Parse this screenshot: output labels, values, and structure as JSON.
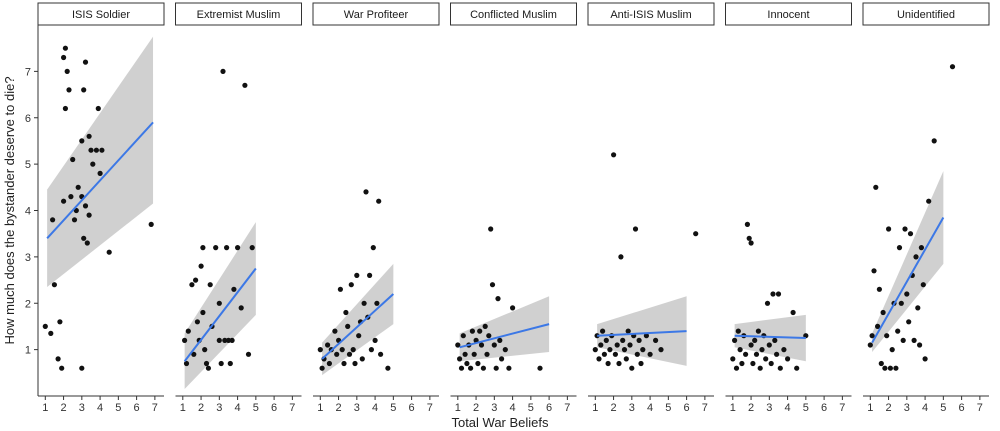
{
  "chart_data": {
    "type": "scatter",
    "xlabel": "Total War Beliefs",
    "ylabel": "How much does the bystander deserve to die?",
    "xlim": [
      0.6,
      7.5
    ],
    "ylim": [
      0,
      8
    ],
    "x_ticks": [
      "1",
      "2",
      "3",
      "4",
      "5",
      "6",
      "7"
    ],
    "y_ticks": [
      "1",
      "2",
      "3",
      "4",
      "5",
      "6",
      "7"
    ],
    "grid": false,
    "colors": {
      "point": "#111111",
      "fit_line": "#3c78e6",
      "ribbon": "#c8c8c8",
      "strip_fill": "#ffffff"
    },
    "panels": [
      {
        "label": "ISIS Soldier",
        "fit": {
          "x": [
            1.1,
            6.9
          ],
          "y": [
            3.4,
            5.9
          ],
          "ci_lower": [
            2.35,
            4.15
          ],
          "ci_upper": [
            4.45,
            7.75
          ]
        },
        "points": [
          [
            1.0,
            1.5
          ],
          [
            1.3,
            1.35
          ],
          [
            1.4,
            3.8
          ],
          [
            1.5,
            2.4
          ],
          [
            1.7,
            0.8
          ],
          [
            1.8,
            1.6
          ],
          [
            1.9,
            0.6
          ],
          [
            2.0,
            7.3
          ],
          [
            2.1,
            7.5
          ],
          [
            2.2,
            7.0
          ],
          [
            2.1,
            6.2
          ],
          [
            2.3,
            6.6
          ],
          [
            2.0,
            4.2
          ],
          [
            2.4,
            4.3
          ],
          [
            2.5,
            5.1
          ],
          [
            2.6,
            3.8
          ],
          [
            2.7,
            4.0
          ],
          [
            2.8,
            4.5
          ],
          [
            3.0,
            5.5
          ],
          [
            3.1,
            6.6
          ],
          [
            3.2,
            7.2
          ],
          [
            3.0,
            4.3
          ],
          [
            3.1,
            3.4
          ],
          [
            3.2,
            4.1
          ],
          [
            3.3,
            3.3
          ],
          [
            3.0,
            0.6
          ],
          [
            3.4,
            3.9
          ],
          [
            3.5,
            5.3
          ],
          [
            3.4,
            5.6
          ],
          [
            3.6,
            5.0
          ],
          [
            3.8,
            5.3
          ],
          [
            3.9,
            6.2
          ],
          [
            4.0,
            4.8
          ],
          [
            4.1,
            5.3
          ],
          [
            4.5,
            3.1
          ],
          [
            6.8,
            3.7
          ]
        ]
      },
      {
        "label": "Extremist Muslim",
        "fit": {
          "x": [
            1.1,
            5.0
          ],
          "y": [
            0.75,
            2.75
          ],
          "ci_lower": [
            0.15,
            1.75
          ],
          "ci_upper": [
            1.35,
            3.75
          ]
        },
        "points": [
          [
            1.1,
            1.2
          ],
          [
            1.2,
            0.7
          ],
          [
            1.3,
            1.4
          ],
          [
            1.5,
            2.4
          ],
          [
            1.6,
            0.9
          ],
          [
            1.7,
            2.5
          ],
          [
            1.8,
            1.6
          ],
          [
            1.9,
            1.2
          ],
          [
            2.0,
            2.8
          ],
          [
            2.1,
            3.2
          ],
          [
            2.2,
            1.0
          ],
          [
            2.1,
            1.8
          ],
          [
            2.3,
            0.7
          ],
          [
            2.4,
            0.6
          ],
          [
            2.5,
            2.4
          ],
          [
            2.6,
            1.5
          ],
          [
            2.8,
            3.2
          ],
          [
            3.0,
            2.0
          ],
          [
            3.0,
            1.2
          ],
          [
            3.1,
            0.7
          ],
          [
            3.2,
            7.0
          ],
          [
            3.4,
            3.2
          ],
          [
            3.3,
            1.2
          ],
          [
            3.5,
            1.2
          ],
          [
            3.6,
            0.7
          ],
          [
            3.7,
            1.2
          ],
          [
            3.8,
            2.3
          ],
          [
            4.0,
            3.2
          ],
          [
            4.2,
            1.9
          ],
          [
            4.4,
            6.7
          ],
          [
            4.6,
            0.9
          ],
          [
            4.8,
            3.2
          ]
        ]
      },
      {
        "label": "War Profiteer",
        "fit": {
          "x": [
            1.1,
            5.0
          ],
          "y": [
            0.8,
            2.2
          ],
          "ci_lower": [
            0.45,
            1.55
          ],
          "ci_upper": [
            1.15,
            2.85
          ]
        },
        "points": [
          [
            1.0,
            1.0
          ],
          [
            1.1,
            0.6
          ],
          [
            1.2,
            0.8
          ],
          [
            1.4,
            1.1
          ],
          [
            1.5,
            0.7
          ],
          [
            1.6,
            1.0
          ],
          [
            1.8,
            1.4
          ],
          [
            1.9,
            0.9
          ],
          [
            2.0,
            1.2
          ],
          [
            2.1,
            2.3
          ],
          [
            2.2,
            1.0
          ],
          [
            2.3,
            0.7
          ],
          [
            2.4,
            1.8
          ],
          [
            2.5,
            1.5
          ],
          [
            2.6,
            0.9
          ],
          [
            2.7,
            2.4
          ],
          [
            2.8,
            1.0
          ],
          [
            2.9,
            0.7
          ],
          [
            3.0,
            2.6
          ],
          [
            3.1,
            1.3
          ],
          [
            3.2,
            1.6
          ],
          [
            3.3,
            0.8
          ],
          [
            3.4,
            2.0
          ],
          [
            3.5,
            4.4
          ],
          [
            3.6,
            1.7
          ],
          [
            3.7,
            2.6
          ],
          [
            3.8,
            1.0
          ],
          [
            3.9,
            3.2
          ],
          [
            4.0,
            1.2
          ],
          [
            4.1,
            2.0
          ],
          [
            4.2,
            4.2
          ],
          [
            4.3,
            0.9
          ],
          [
            4.7,
            0.6
          ]
        ]
      },
      {
        "label": "Conflicted Muslim",
        "fit": {
          "x": [
            1.1,
            6.0
          ],
          "y": [
            1.05,
            1.55
          ],
          "ci_lower": [
            0.75,
            0.95
          ],
          "ci_upper": [
            1.35,
            2.15
          ]
        },
        "points": [
          [
            1.0,
            1.1
          ],
          [
            1.1,
            0.8
          ],
          [
            1.2,
            0.6
          ],
          [
            1.3,
            1.3
          ],
          [
            1.4,
            0.9
          ],
          [
            1.5,
            0.7
          ],
          [
            1.6,
            1.1
          ],
          [
            1.7,
            0.6
          ],
          [
            1.8,
            1.4
          ],
          [
            1.9,
            0.9
          ],
          [
            2.0,
            1.2
          ],
          [
            2.1,
            0.7
          ],
          [
            2.2,
            1.4
          ],
          [
            2.3,
            1.1
          ],
          [
            2.4,
            0.6
          ],
          [
            2.5,
            1.5
          ],
          [
            2.6,
            0.9
          ],
          [
            2.7,
            1.3
          ],
          [
            2.8,
            3.6
          ],
          [
            2.9,
            2.4
          ],
          [
            3.0,
            1.1
          ],
          [
            3.1,
            0.6
          ],
          [
            3.2,
            2.1
          ],
          [
            3.3,
            1.2
          ],
          [
            3.4,
            0.8
          ],
          [
            3.6,
            1.0
          ],
          [
            3.8,
            0.6
          ],
          [
            4.0,
            1.9
          ],
          [
            5.5,
            0.6
          ]
        ]
      },
      {
        "label": "Anti-ISIS Muslim",
        "fit": {
          "x": [
            1.1,
            6.0
          ],
          "y": [
            1.3,
            1.4
          ],
          "ci_lower": [
            1.05,
            0.65
          ],
          "ci_upper": [
            1.55,
            2.15
          ]
        },
        "points": [
          [
            1.0,
            1.0
          ],
          [
            1.1,
            1.3
          ],
          [
            1.2,
            0.8
          ],
          [
            1.3,
            1.1
          ],
          [
            1.4,
            1.4
          ],
          [
            1.5,
            0.9
          ],
          [
            1.6,
            1.2
          ],
          [
            1.7,
            0.7
          ],
          [
            1.8,
            1.0
          ],
          [
            1.9,
            1.3
          ],
          [
            2.0,
            5.2
          ],
          [
            2.1,
            0.9
          ],
          [
            2.2,
            1.1
          ],
          [
            2.3,
            0.7
          ],
          [
            2.4,
            3.0
          ],
          [
            2.5,
            1.2
          ],
          [
            2.6,
            1.0
          ],
          [
            2.7,
            0.8
          ],
          [
            2.8,
            1.4
          ],
          [
            2.9,
            1.1
          ],
          [
            3.0,
            0.6
          ],
          [
            3.1,
            1.3
          ],
          [
            3.2,
            3.6
          ],
          [
            3.3,
            0.9
          ],
          [
            3.4,
            1.2
          ],
          [
            3.5,
            0.7
          ],
          [
            3.6,
            1.0
          ],
          [
            3.8,
            1.3
          ],
          [
            4.0,
            0.9
          ],
          [
            4.3,
            1.2
          ],
          [
            4.6,
            1.0
          ],
          [
            6.5,
            3.5
          ]
        ]
      },
      {
        "label": "Innocent",
        "fit": {
          "x": [
            1.1,
            5.0
          ],
          "y": [
            1.3,
            1.25
          ],
          "ci_lower": [
            1.05,
            0.75
          ],
          "ci_upper": [
            1.55,
            1.75
          ]
        },
        "points": [
          [
            1.0,
            0.8
          ],
          [
            1.1,
            1.2
          ],
          [
            1.2,
            0.6
          ],
          [
            1.3,
            1.4
          ],
          [
            1.4,
            1.0
          ],
          [
            1.5,
            0.7
          ],
          [
            1.6,
            1.3
          ],
          [
            1.7,
            0.9
          ],
          [
            1.8,
            3.7
          ],
          [
            1.9,
            3.4
          ],
          [
            2.0,
            3.3
          ],
          [
            2.0,
            1.1
          ],
          [
            2.1,
            0.7
          ],
          [
            2.2,
            1.2
          ],
          [
            2.3,
            0.9
          ],
          [
            2.4,
            1.4
          ],
          [
            2.5,
            0.6
          ],
          [
            2.6,
            1.0
          ],
          [
            2.7,
            1.3
          ],
          [
            2.8,
            0.8
          ],
          [
            2.9,
            2.0
          ],
          [
            3.0,
            1.1
          ],
          [
            3.1,
            0.7
          ],
          [
            3.2,
            2.2
          ],
          [
            3.3,
            1.2
          ],
          [
            3.4,
            0.9
          ],
          [
            3.5,
            2.2
          ],
          [
            3.6,
            0.6
          ],
          [
            3.8,
            1.0
          ],
          [
            4.0,
            0.8
          ],
          [
            4.3,
            1.8
          ],
          [
            4.5,
            0.6
          ],
          [
            5.0,
            1.3
          ]
        ]
      },
      {
        "label": "Unidentified",
        "fit": {
          "x": [
            1.1,
            5.0
          ],
          "y": [
            1.15,
            3.85
          ],
          "ci_lower": [
            0.95,
            2.85
          ],
          "ci_upper": [
            1.35,
            4.85
          ]
        },
        "points": [
          [
            1.0,
            1.1
          ],
          [
            1.1,
            1.3
          ],
          [
            1.2,
            2.7
          ],
          [
            1.3,
            4.5
          ],
          [
            1.4,
            1.5
          ],
          [
            1.5,
            2.3
          ],
          [
            1.6,
            0.7
          ],
          [
            1.7,
            1.8
          ],
          [
            1.8,
            0.6
          ],
          [
            1.9,
            1.3
          ],
          [
            2.0,
            3.6
          ],
          [
            2.1,
            0.6
          ],
          [
            2.2,
            1.0
          ],
          [
            2.3,
            2.0
          ],
          [
            2.4,
            0.6
          ],
          [
            2.5,
            1.4
          ],
          [
            2.6,
            3.2
          ],
          [
            2.7,
            2.0
          ],
          [
            2.8,
            1.2
          ],
          [
            2.9,
            3.6
          ],
          [
            3.0,
            2.2
          ],
          [
            3.1,
            1.6
          ],
          [
            3.2,
            3.5
          ],
          [
            3.3,
            2.6
          ],
          [
            3.4,
            1.2
          ],
          [
            3.5,
            3.0
          ],
          [
            3.6,
            1.9
          ],
          [
            3.7,
            1.1
          ],
          [
            3.8,
            3.2
          ],
          [
            3.9,
            2.4
          ],
          [
            4.0,
            0.8
          ],
          [
            4.2,
            4.2
          ],
          [
            4.5,
            5.5
          ],
          [
            5.5,
            7.1
          ]
        ]
      }
    ]
  }
}
